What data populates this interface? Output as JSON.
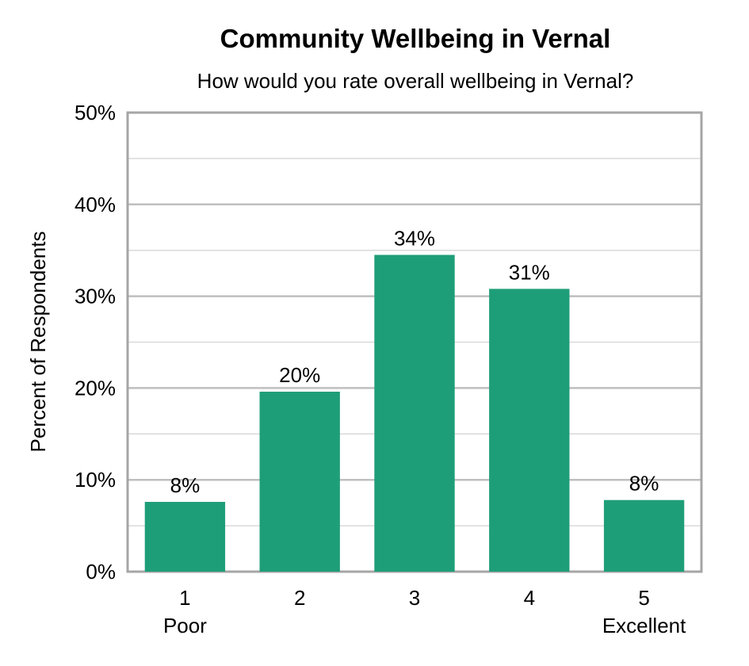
{
  "chart_data": {
    "type": "bar",
    "title": "Community Wellbeing in Vernal",
    "subtitle": "How would you rate overall wellbeing in Vernal?",
    "ylabel": "Percent of Respondents",
    "xlabel": "",
    "categories": [
      "1",
      "2",
      "3",
      "4",
      "5"
    ],
    "category_sublabels": [
      "Poor",
      "",
      "",
      "",
      "Excellent"
    ],
    "values": [
      7.6,
      19.6,
      34.5,
      30.8,
      7.8
    ],
    "data_labels": [
      "8%",
      "20%",
      "34%",
      "31%",
      "8%"
    ],
    "ylim": [
      0,
      50
    ],
    "yticks": [
      0,
      10,
      20,
      30,
      40,
      50
    ],
    "ytick_labels": [
      "0%",
      "10%",
      "20%",
      "30%",
      "40%",
      "50%"
    ],
    "grid": true,
    "minor_grid": true,
    "legend": "none",
    "bar_color": "#1e9e78",
    "grid_color": "#bfbfbf",
    "frame_color": "#a6a6a6"
  }
}
